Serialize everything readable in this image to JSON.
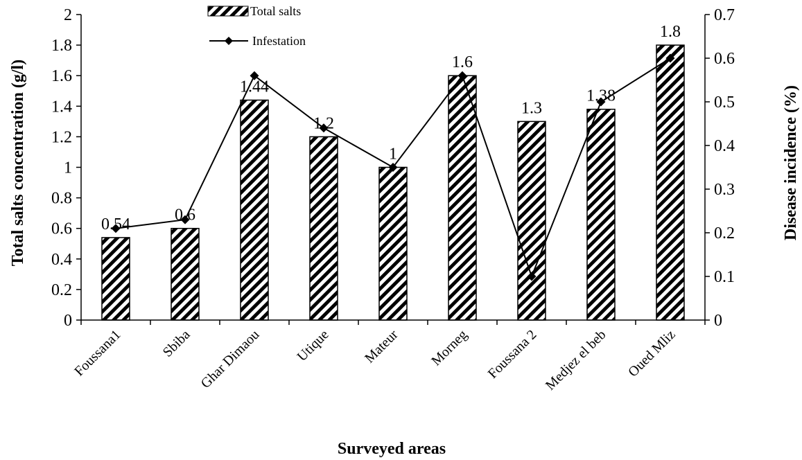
{
  "chart_data": {
    "type": "bar",
    "categories": [
      "Foussana1",
      "Sbiba",
      "Ghar Dimaou",
      "Utique",
      "Mateur",
      "Morneg",
      "Foussana 2",
      "Medjez el beb",
      "Oued Mliz"
    ],
    "series": [
      {
        "name": "Total salts",
        "type": "bar",
        "axis": "left",
        "values": [
          0.54,
          0.6,
          1.44,
          1.2,
          1,
          1.6,
          1.3,
          1.38,
          1.8
        ],
        "data_labels": [
          "0.54",
          "0.6",
          "1.44",
          "1.2",
          "1",
          "1.6",
          "1.3",
          "1.38",
          "1.8"
        ]
      },
      {
        "name": "Infestation",
        "type": "line",
        "axis": "right",
        "marker": "diamond",
        "values": [
          0.21,
          0.23,
          0.56,
          0.44,
          0.35,
          0.56,
          0.1,
          0.5,
          0.6
        ]
      }
    ],
    "xlabel": "Surveyed areas",
    "ylabel": "Total salts concentration (g/l)",
    "y2label": "Disease incidence (%)",
    "ylim": [
      0,
      2
    ],
    "y2lim": [
      0,
      0.7
    ],
    "yticks": [
      "0",
      "0.2",
      "0.4",
      "0.6",
      "0.8",
      "1",
      "1.2",
      "1.4",
      "1.6",
      "1.8",
      "2"
    ],
    "y2ticks": [
      "0",
      "0.1",
      "0.2",
      "0.3",
      "0.4",
      "0.5",
      "0.6",
      "0.7"
    ],
    "grid": false,
    "legend_position": "top-center",
    "colors": {
      "bar_fill": "#ffffff",
      "bar_hatch": "#000000",
      "line": "#000000"
    }
  }
}
